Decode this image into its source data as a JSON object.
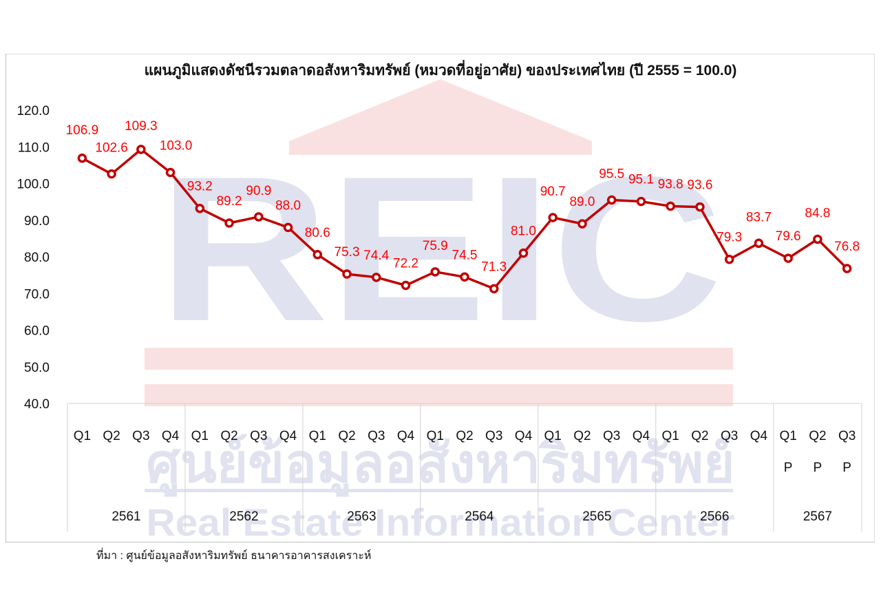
{
  "chart_data": {
    "type": "line",
    "title": "แผนภูมิแสดงดัชนีรวมตลาดอสังหาริมทรัพย์ (หมวดที่อยู่อาศัย) ของประเทศไทย (ปี 2555 = 100.0)",
    "xlabel": "",
    "ylabel": "",
    "ylim": [
      40,
      120
    ],
    "yticks": [
      "120.0",
      "110.0",
      "100.0",
      "90.0",
      "80.0",
      "70.0",
      "60.0",
      "50.0",
      "40.0"
    ],
    "quarters": [
      "Q1",
      "Q2",
      "Q3",
      "Q4",
      "Q1",
      "Q2",
      "Q3",
      "Q4",
      "Q1",
      "Q2",
      "Q3",
      "Q4",
      "Q1",
      "Q2",
      "Q3",
      "Q4",
      "Q1",
      "Q2",
      "Q3",
      "Q4",
      "Q1",
      "Q2",
      "Q3",
      "Q4",
      "Q1",
      "Q2",
      "Q3"
    ],
    "preliminary_flags": [
      "",
      "",
      "",
      "",
      "",
      "",
      "",
      "",
      "",
      "",
      "",
      "",
      "",
      "",
      "",
      "",
      "",
      "",
      "",
      "",
      "",
      "",
      "",
      "",
      "P",
      "P",
      "P"
    ],
    "years": [
      {
        "label": "2561",
        "count": 4
      },
      {
        "label": "2562",
        "count": 4
      },
      {
        "label": "2563",
        "count": 4
      },
      {
        "label": "2564",
        "count": 4
      },
      {
        "label": "2565",
        "count": 4
      },
      {
        "label": "2566",
        "count": 4
      },
      {
        "label": "2567",
        "count": 3
      }
    ],
    "series": [
      {
        "values": [
          106.9,
          102.6,
          109.3,
          103.0,
          93.2,
          89.2,
          90.9,
          88.0,
          80.6,
          75.3,
          74.4,
          72.2,
          75.9,
          74.5,
          71.3,
          81.0,
          90.7,
          89.0,
          95.5,
          95.1,
          93.8,
          93.6,
          79.3,
          83.7,
          79.6,
          84.8,
          76.8
        ],
        "labels": [
          "106.9",
          "102.6",
          "109.3",
          "103.0",
          "93.2",
          "89.2",
          "90.9",
          "88.0",
          "80.6",
          "75.3",
          "74.4",
          "72.2",
          "75.9",
          "74.5",
          "71.3",
          "81.0",
          "90.7",
          "89.0",
          "95.5",
          "95.1",
          "93.8",
          "93.6",
          "79.3",
          "83.7",
          "79.6",
          "84.8",
          "76.8"
        ]
      }
    ],
    "line_color": "#c00000",
    "label_color": "#ff0000",
    "grid": false,
    "legend": "none"
  },
  "watermark": {
    "logo": "REIC",
    "thai_name": "ศูนย์ข้อมูลอสังหาริมทรัพย์",
    "english_name": "Real Estate Information Center"
  },
  "source_note": "ที่มา : ศูนย์ข้อมูลอสังหาริมทรัพย์ ธนาคารอาคารสงเคราะห์"
}
